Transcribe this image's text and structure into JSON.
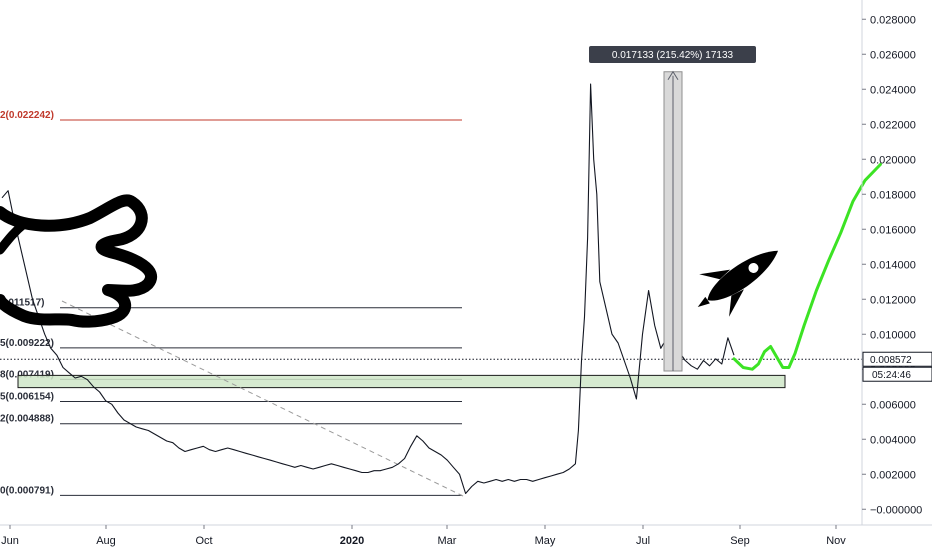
{
  "chart_data": {
    "type": "line",
    "x_ticks": [
      "Jun",
      "Aug",
      "Oct",
      "2020",
      "Mar",
      "May",
      "Jul",
      "Sep",
      "Nov"
    ],
    "y_ticks": [
      "0.028000",
      "0.026000",
      "0.024000",
      "0.022000",
      "0.020000",
      "0.018000",
      "0.016000",
      "0.014000",
      "0.012000",
      "0.010000",
      "0.008000",
      "0.006000",
      "0.004000",
      "0.002000",
      "−0.000000"
    ],
    "y_tick_values": [
      0.028,
      0.026,
      0.024,
      0.022,
      0.02,
      0.018,
      0.016,
      0.014,
      0.012,
      0.01,
      0.008,
      0.006,
      0.004,
      0.002,
      0.0
    ],
    "ylim": [
      -0.0009,
      0.0291
    ],
    "fib_levels": [
      {
        "label": "2(0.022242)",
        "value": 0.022242,
        "color": "#c0392b"
      },
      {
        "label": "0.011517)",
        "value": 0.011517,
        "color": "#2a2e39"
      },
      {
        "label": "5(0.009222)",
        "value": 0.009222,
        "color": "#2a2e39"
      },
      {
        "label": "8(0.007419)",
        "value": 0.007419,
        "color": "#2a2e39"
      },
      {
        "label": "5(0.006154)",
        "value": 0.006154,
        "color": "#2a2e39"
      },
      {
        "label": "2(0.004888)",
        "value": 0.004888,
        "color": "#2a2e39"
      },
      {
        "label": "0(0.000791)",
        "value": 0.000791,
        "color": "#2a2e39"
      }
    ],
    "last_price": "0.008572",
    "last_price_value": 0.008572,
    "countdown": "05:24:46",
    "measure_label": "0.017133 (215.42%) 17133",
    "support_zone": [
      0.00695,
      0.00765
    ],
    "price_series": [
      [
        0,
        0.0178
      ],
      [
        0.02,
        0.0182
      ],
      [
        0.04,
        0.0165
      ],
      [
        0.06,
        0.015
      ],
      [
        0.08,
        0.0135
      ],
      [
        0.1,
        0.012
      ],
      [
        0.12,
        0.011
      ],
      [
        0.14,
        0.01
      ],
      [
        0.16,
        0.0092
      ],
      [
        0.18,
        0.0088
      ],
      [
        0.2,
        0.0081
      ],
      [
        0.22,
        0.0078
      ],
      [
        0.24,
        0.0075
      ],
      [
        0.26,
        0.0076
      ],
      [
        0.28,
        0.0074
      ],
      [
        0.3,
        0.007
      ],
      [
        0.32,
        0.0067
      ],
      [
        0.34,
        0.0062
      ],
      [
        0.36,
        0.006
      ],
      [
        0.38,
        0.0055
      ],
      [
        0.4,
        0.0051
      ],
      [
        0.42,
        0.0049
      ],
      [
        0.44,
        0.0047
      ],
      [
        0.46,
        0.0046
      ],
      [
        0.48,
        0.0045
      ],
      [
        0.5,
        0.0043
      ],
      [
        0.52,
        0.0041
      ],
      [
        0.54,
        0.0039
      ],
      [
        0.56,
        0.0038
      ],
      [
        0.58,
        0.0035
      ],
      [
        0.6,
        0.0033
      ],
      [
        0.62,
        0.0034
      ],
      [
        0.64,
        0.0035
      ],
      [
        0.66,
        0.0036
      ],
      [
        0.68,
        0.0034
      ],
      [
        0.7,
        0.0033
      ],
      [
        0.72,
        0.0034
      ],
      [
        0.74,
        0.0035
      ],
      [
        0.76,
        0.0034
      ],
      [
        0.78,
        0.0033
      ],
      [
        0.8,
        0.0032
      ],
      [
        0.82,
        0.0031
      ],
      [
        0.84,
        0.003
      ],
      [
        0.86,
        0.0029
      ],
      [
        0.88,
        0.0028
      ],
      [
        0.9,
        0.0027
      ],
      [
        0.92,
        0.0026
      ],
      [
        0.94,
        0.0025
      ],
      [
        0.96,
        0.0024
      ],
      [
        0.98,
        0.0025
      ],
      [
        1.0,
        0.0024
      ],
      [
        1.02,
        0.0023
      ],
      [
        1.04,
        0.0024
      ],
      [
        1.06,
        0.0025
      ],
      [
        1.08,
        0.0026
      ],
      [
        1.1,
        0.0025
      ],
      [
        1.12,
        0.0024
      ],
      [
        1.14,
        0.0023
      ],
      [
        1.16,
        0.0022
      ],
      [
        1.18,
        0.0021
      ],
      [
        1.2,
        0.0021
      ],
      [
        1.22,
        0.0022
      ],
      [
        1.24,
        0.0022
      ],
      [
        1.26,
        0.0023
      ],
      [
        1.28,
        0.0024
      ],
      [
        1.3,
        0.0026
      ],
      [
        1.32,
        0.0029
      ],
      [
        1.34,
        0.0036
      ],
      [
        1.36,
        0.0042
      ],
      [
        1.38,
        0.0039
      ],
      [
        1.4,
        0.0035
      ],
      [
        1.42,
        0.0033
      ],
      [
        1.44,
        0.0031
      ],
      [
        1.46,
        0.0028
      ],
      [
        1.48,
        0.0024
      ],
      [
        1.5,
        0.002
      ],
      [
        1.52,
        0.0009
      ],
      [
        1.54,
        0.0013
      ],
      [
        1.56,
        0.0016
      ],
      [
        1.58,
        0.0015
      ],
      [
        1.6,
        0.0016
      ],
      [
        1.62,
        0.0017
      ],
      [
        1.64,
        0.0016
      ],
      [
        1.66,
        0.0017
      ],
      [
        1.68,
        0.0016
      ],
      [
        1.7,
        0.0017
      ],
      [
        1.72,
        0.0017
      ],
      [
        1.74,
        0.0016
      ],
      [
        1.76,
        0.0017
      ],
      [
        1.78,
        0.0018
      ],
      [
        1.8,
        0.0019
      ],
      [
        1.82,
        0.002
      ],
      [
        1.84,
        0.0021
      ],
      [
        1.86,
        0.0023
      ],
      [
        1.88,
        0.0026
      ],
      [
        1.89,
        0.0045
      ],
      [
        1.9,
        0.0085
      ],
      [
        1.91,
        0.011
      ],
      [
        1.92,
        0.0155
      ],
      [
        1.93,
        0.0243
      ],
      [
        1.94,
        0.02
      ],
      [
        1.95,
        0.018
      ],
      [
        1.96,
        0.013
      ],
      [
        1.98,
        0.0115
      ],
      [
        2.0,
        0.01
      ],
      [
        2.02,
        0.0095
      ],
      [
        2.04,
        0.0085
      ],
      [
        2.06,
        0.0075
      ],
      [
        2.08,
        0.0063
      ],
      [
        2.1,
        0.01
      ],
      [
        2.12,
        0.0125
      ],
      [
        2.14,
        0.0105
      ],
      [
        2.16,
        0.0092
      ],
      [
        2.18,
        0.0098
      ],
      [
        2.2,
        0.0088
      ],
      [
        2.22,
        0.009
      ],
      [
        2.24,
        0.0085
      ],
      [
        2.26,
        0.0082
      ],
      [
        2.28,
        0.008
      ],
      [
        2.3,
        0.0085
      ],
      [
        2.32,
        0.0082
      ],
      [
        2.34,
        0.0086
      ],
      [
        2.36,
        0.0083
      ],
      [
        2.38,
        0.0098
      ],
      [
        2.4,
        0.0088
      ]
    ],
    "projection": [
      [
        2.4,
        0.0086
      ],
      [
        2.43,
        0.0081
      ],
      [
        2.46,
        0.008
      ],
      [
        2.48,
        0.0083
      ],
      [
        2.5,
        0.009
      ],
      [
        2.52,
        0.0093
      ],
      [
        2.54,
        0.0087
      ],
      [
        2.56,
        0.0081
      ],
      [
        2.58,
        0.0081
      ],
      [
        2.6,
        0.0089
      ],
      [
        2.63,
        0.0105
      ],
      [
        2.67,
        0.0125
      ],
      [
        2.71,
        0.0142
      ],
      [
        2.75,
        0.0158
      ],
      [
        2.79,
        0.0176
      ],
      [
        2.83,
        0.0188
      ],
      [
        2.88,
        0.0197
      ]
    ]
  }
}
